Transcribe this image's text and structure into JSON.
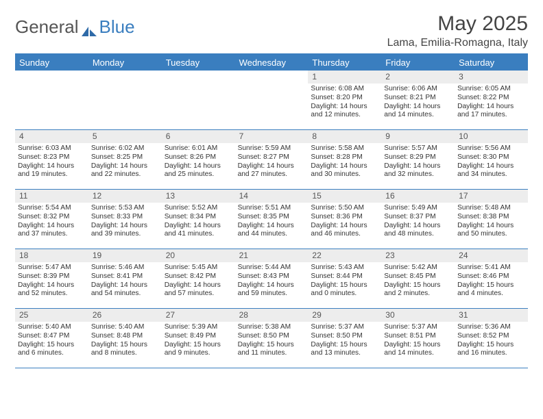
{
  "logo": {
    "text1": "General",
    "text2": "Blue"
  },
  "title": "May 2025",
  "location": "Lama, Emilia-Romagna, Italy",
  "colors": {
    "header_bg": "#3a7ebf",
    "header_text": "#ffffff",
    "daynum_bg": "#ededed",
    "text": "#333333",
    "page_bg": "#ffffff"
  },
  "day_names": [
    "Sunday",
    "Monday",
    "Tuesday",
    "Wednesday",
    "Thursday",
    "Friday",
    "Saturday"
  ],
  "weeks": [
    [
      {
        "n": "",
        "sr": "",
        "ss": "",
        "dl1": "",
        "dl2": ""
      },
      {
        "n": "",
        "sr": "",
        "ss": "",
        "dl1": "",
        "dl2": ""
      },
      {
        "n": "",
        "sr": "",
        "ss": "",
        "dl1": "",
        "dl2": ""
      },
      {
        "n": "",
        "sr": "",
        "ss": "",
        "dl1": "",
        "dl2": ""
      },
      {
        "n": "1",
        "sr": "Sunrise: 6:08 AM",
        "ss": "Sunset: 8:20 PM",
        "dl1": "Daylight: 14 hours",
        "dl2": "and 12 minutes."
      },
      {
        "n": "2",
        "sr": "Sunrise: 6:06 AM",
        "ss": "Sunset: 8:21 PM",
        "dl1": "Daylight: 14 hours",
        "dl2": "and 14 minutes."
      },
      {
        "n": "3",
        "sr": "Sunrise: 6:05 AM",
        "ss": "Sunset: 8:22 PM",
        "dl1": "Daylight: 14 hours",
        "dl2": "and 17 minutes."
      }
    ],
    [
      {
        "n": "4",
        "sr": "Sunrise: 6:03 AM",
        "ss": "Sunset: 8:23 PM",
        "dl1": "Daylight: 14 hours",
        "dl2": "and 19 minutes."
      },
      {
        "n": "5",
        "sr": "Sunrise: 6:02 AM",
        "ss": "Sunset: 8:25 PM",
        "dl1": "Daylight: 14 hours",
        "dl2": "and 22 minutes."
      },
      {
        "n": "6",
        "sr": "Sunrise: 6:01 AM",
        "ss": "Sunset: 8:26 PM",
        "dl1": "Daylight: 14 hours",
        "dl2": "and 25 minutes."
      },
      {
        "n": "7",
        "sr": "Sunrise: 5:59 AM",
        "ss": "Sunset: 8:27 PM",
        "dl1": "Daylight: 14 hours",
        "dl2": "and 27 minutes."
      },
      {
        "n": "8",
        "sr": "Sunrise: 5:58 AM",
        "ss": "Sunset: 8:28 PM",
        "dl1": "Daylight: 14 hours",
        "dl2": "and 30 minutes."
      },
      {
        "n": "9",
        "sr": "Sunrise: 5:57 AM",
        "ss": "Sunset: 8:29 PM",
        "dl1": "Daylight: 14 hours",
        "dl2": "and 32 minutes."
      },
      {
        "n": "10",
        "sr": "Sunrise: 5:56 AM",
        "ss": "Sunset: 8:30 PM",
        "dl1": "Daylight: 14 hours",
        "dl2": "and 34 minutes."
      }
    ],
    [
      {
        "n": "11",
        "sr": "Sunrise: 5:54 AM",
        "ss": "Sunset: 8:32 PM",
        "dl1": "Daylight: 14 hours",
        "dl2": "and 37 minutes."
      },
      {
        "n": "12",
        "sr": "Sunrise: 5:53 AM",
        "ss": "Sunset: 8:33 PM",
        "dl1": "Daylight: 14 hours",
        "dl2": "and 39 minutes."
      },
      {
        "n": "13",
        "sr": "Sunrise: 5:52 AM",
        "ss": "Sunset: 8:34 PM",
        "dl1": "Daylight: 14 hours",
        "dl2": "and 41 minutes."
      },
      {
        "n": "14",
        "sr": "Sunrise: 5:51 AM",
        "ss": "Sunset: 8:35 PM",
        "dl1": "Daylight: 14 hours",
        "dl2": "and 44 minutes."
      },
      {
        "n": "15",
        "sr": "Sunrise: 5:50 AM",
        "ss": "Sunset: 8:36 PM",
        "dl1": "Daylight: 14 hours",
        "dl2": "and 46 minutes."
      },
      {
        "n": "16",
        "sr": "Sunrise: 5:49 AM",
        "ss": "Sunset: 8:37 PM",
        "dl1": "Daylight: 14 hours",
        "dl2": "and 48 minutes."
      },
      {
        "n": "17",
        "sr": "Sunrise: 5:48 AM",
        "ss": "Sunset: 8:38 PM",
        "dl1": "Daylight: 14 hours",
        "dl2": "and 50 minutes."
      }
    ],
    [
      {
        "n": "18",
        "sr": "Sunrise: 5:47 AM",
        "ss": "Sunset: 8:39 PM",
        "dl1": "Daylight: 14 hours",
        "dl2": "and 52 minutes."
      },
      {
        "n": "19",
        "sr": "Sunrise: 5:46 AM",
        "ss": "Sunset: 8:41 PM",
        "dl1": "Daylight: 14 hours",
        "dl2": "and 54 minutes."
      },
      {
        "n": "20",
        "sr": "Sunrise: 5:45 AM",
        "ss": "Sunset: 8:42 PM",
        "dl1": "Daylight: 14 hours",
        "dl2": "and 57 minutes."
      },
      {
        "n": "21",
        "sr": "Sunrise: 5:44 AM",
        "ss": "Sunset: 8:43 PM",
        "dl1": "Daylight: 14 hours",
        "dl2": "and 59 minutes."
      },
      {
        "n": "22",
        "sr": "Sunrise: 5:43 AM",
        "ss": "Sunset: 8:44 PM",
        "dl1": "Daylight: 15 hours",
        "dl2": "and 0 minutes."
      },
      {
        "n": "23",
        "sr": "Sunrise: 5:42 AM",
        "ss": "Sunset: 8:45 PM",
        "dl1": "Daylight: 15 hours",
        "dl2": "and 2 minutes."
      },
      {
        "n": "24",
        "sr": "Sunrise: 5:41 AM",
        "ss": "Sunset: 8:46 PM",
        "dl1": "Daylight: 15 hours",
        "dl2": "and 4 minutes."
      }
    ],
    [
      {
        "n": "25",
        "sr": "Sunrise: 5:40 AM",
        "ss": "Sunset: 8:47 PM",
        "dl1": "Daylight: 15 hours",
        "dl2": "and 6 minutes."
      },
      {
        "n": "26",
        "sr": "Sunrise: 5:40 AM",
        "ss": "Sunset: 8:48 PM",
        "dl1": "Daylight: 15 hours",
        "dl2": "and 8 minutes."
      },
      {
        "n": "27",
        "sr": "Sunrise: 5:39 AM",
        "ss": "Sunset: 8:49 PM",
        "dl1": "Daylight: 15 hours",
        "dl2": "and 9 minutes."
      },
      {
        "n": "28",
        "sr": "Sunrise: 5:38 AM",
        "ss": "Sunset: 8:50 PM",
        "dl1": "Daylight: 15 hours",
        "dl2": "and 11 minutes."
      },
      {
        "n": "29",
        "sr": "Sunrise: 5:37 AM",
        "ss": "Sunset: 8:50 PM",
        "dl1": "Daylight: 15 hours",
        "dl2": "and 13 minutes."
      },
      {
        "n": "30",
        "sr": "Sunrise: 5:37 AM",
        "ss": "Sunset: 8:51 PM",
        "dl1": "Daylight: 15 hours",
        "dl2": "and 14 minutes."
      },
      {
        "n": "31",
        "sr": "Sunrise: 5:36 AM",
        "ss": "Sunset: 8:52 PM",
        "dl1": "Daylight: 15 hours",
        "dl2": "and 16 minutes."
      }
    ]
  ]
}
